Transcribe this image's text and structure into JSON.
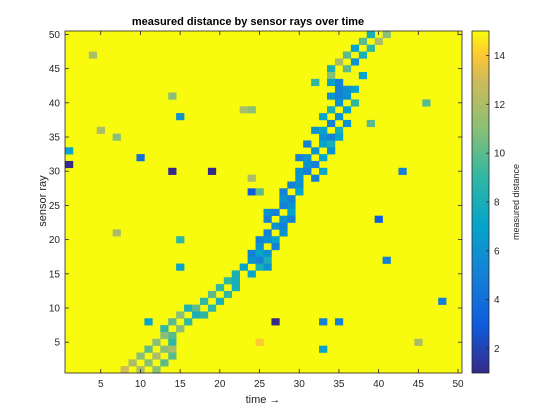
{
  "chart_data": {
    "type": "heatmap",
    "title": "measured distance by sensor rays over time",
    "xlabel": "time →",
    "ylabel": "sensor ray",
    "colorbar_label": "measured distance",
    "x_range": [
      1,
      50
    ],
    "y_range": [
      1,
      50
    ],
    "color_range": [
      1,
      15
    ],
    "colormap": "parula",
    "background_value": 15,
    "x_ticks": [
      5,
      10,
      15,
      20,
      25,
      30,
      35,
      40,
      45,
      50
    ],
    "y_ticks": [
      5,
      10,
      15,
      20,
      25,
      30,
      35,
      40,
      45,
      50
    ],
    "colorbar_ticks": [
      2,
      4,
      6,
      8,
      10,
      12,
      14
    ],
    "grid": false,
    "cells": [
      [
        39,
        50,
        8
      ],
      [
        41,
        50,
        11
      ],
      [
        38,
        49,
        10
      ],
      [
        40,
        49,
        12
      ],
      [
        37,
        48,
        7
      ],
      [
        39,
        48,
        9
      ],
      [
        36,
        47,
        10
      ],
      [
        38,
        47,
        8
      ],
      [
        35,
        46,
        12
      ],
      [
        37,
        46,
        6
      ],
      [
        34,
        45,
        8
      ],
      [
        36,
        45,
        10
      ],
      [
        38,
        44,
        7
      ],
      [
        34,
        44,
        11
      ],
      [
        32,
        43,
        9
      ],
      [
        34,
        43,
        7
      ],
      [
        35,
        43,
        5
      ],
      [
        36,
        42,
        6
      ],
      [
        37,
        42,
        7
      ],
      [
        35,
        42,
        5
      ],
      [
        34,
        41,
        6
      ],
      [
        35,
        41,
        5
      ],
      [
        36,
        41,
        6
      ],
      [
        35,
        40,
        6
      ],
      [
        37,
        40,
        9
      ],
      [
        34,
        39,
        8
      ],
      [
        36,
        39,
        7
      ],
      [
        33,
        38,
        7
      ],
      [
        35,
        38,
        6
      ],
      [
        34,
        37,
        5
      ],
      [
        36,
        37,
        6
      ],
      [
        32,
        36,
        6
      ],
      [
        33,
        36,
        7
      ],
      [
        35,
        36,
        8
      ],
      [
        33,
        35,
        6
      ],
      [
        34,
        35,
        5
      ],
      [
        35,
        35,
        7
      ],
      [
        31,
        34,
        5
      ],
      [
        33,
        34,
        7
      ],
      [
        34,
        34,
        8
      ],
      [
        32,
        33,
        6
      ],
      [
        34,
        33,
        6
      ],
      [
        30,
        32,
        5
      ],
      [
        31,
        32,
        6
      ],
      [
        33,
        32,
        7
      ],
      [
        31,
        31,
        6
      ],
      [
        32,
        31,
        5
      ],
      [
        30,
        30,
        6
      ],
      [
        31,
        30,
        5
      ],
      [
        33,
        30,
        7
      ],
      [
        30,
        29,
        6
      ],
      [
        32,
        29,
        5
      ],
      [
        29,
        28,
        5
      ],
      [
        30,
        28,
        6
      ],
      [
        28,
        27,
        5
      ],
      [
        30,
        27,
        7
      ],
      [
        28,
        26,
        6
      ],
      [
        29,
        26,
        5
      ],
      [
        28,
        25,
        5
      ],
      [
        29,
        25,
        6
      ],
      [
        26,
        24,
        6
      ],
      [
        27,
        24,
        5
      ],
      [
        29,
        24,
        7
      ],
      [
        26,
        23,
        5
      ],
      [
        28,
        23,
        6
      ],
      [
        29,
        23,
        5
      ],
      [
        27,
        22,
        6
      ],
      [
        28,
        22,
        5
      ],
      [
        26,
        21,
        5
      ],
      [
        28,
        21,
        6
      ],
      [
        25,
        20,
        5
      ],
      [
        26,
        20,
        6
      ],
      [
        27,
        20,
        7
      ],
      [
        25,
        19,
        6
      ],
      [
        27,
        19,
        5
      ],
      [
        24,
        18,
        5
      ],
      [
        25,
        18,
        7
      ],
      [
        26,
        18,
        6
      ],
      [
        24,
        17,
        6
      ],
      [
        25,
        17,
        5
      ],
      [
        26,
        17,
        8
      ],
      [
        23,
        16,
        7
      ],
      [
        25,
        16,
        8
      ],
      [
        26,
        16,
        6
      ],
      [
        22,
        15,
        8
      ],
      [
        24,
        15,
        7
      ],
      [
        21,
        14,
        9
      ],
      [
        22,
        14,
        8
      ],
      [
        20,
        13,
        9
      ],
      [
        22,
        13,
        8
      ],
      [
        19,
        12,
        10
      ],
      [
        21,
        12,
        9
      ],
      [
        18,
        11,
        9
      ],
      [
        20,
        11,
        8
      ],
      [
        16,
        10,
        8
      ],
      [
        17,
        10,
        10
      ],
      [
        19,
        10,
        9
      ],
      [
        15,
        9,
        11
      ],
      [
        17,
        9,
        8
      ],
      [
        18,
        9,
        9
      ],
      [
        14,
        8,
        10
      ],
      [
        16,
        8,
        9
      ],
      [
        13,
        7,
        9
      ],
      [
        15,
        7,
        11
      ],
      [
        13,
        6,
        11
      ],
      [
        14,
        6,
        10
      ],
      [
        12,
        5,
        11
      ],
      [
        14,
        5,
        9
      ],
      [
        11,
        4,
        10
      ],
      [
        13,
        4,
        11
      ],
      [
        14,
        4,
        12
      ],
      [
        10,
        3,
        11
      ],
      [
        12,
        3,
        12
      ],
      [
        14,
        3,
        10
      ],
      [
        9,
        2,
        12
      ],
      [
        11,
        2,
        11
      ],
      [
        13,
        2,
        10
      ],
      [
        8,
        1,
        13
      ],
      [
        10,
        1,
        12
      ],
      [
        12,
        1,
        11
      ],
      [
        1,
        33,
        7
      ],
      [
        1,
        31,
        1
      ],
      [
        4,
        47,
        12
      ],
      [
        5,
        36,
        12
      ],
      [
        7,
        35,
        11
      ],
      [
        7,
        21,
        12
      ],
      [
        10,
        32,
        4
      ],
      [
        11,
        8,
        7
      ],
      [
        14,
        41,
        11
      ],
      [
        14,
        30,
        1
      ],
      [
        15,
        38,
        6
      ],
      [
        15,
        20,
        9
      ],
      [
        15,
        16,
        7
      ],
      [
        19,
        30,
        1
      ],
      [
        23,
        39,
        12
      ],
      [
        24,
        39,
        11
      ],
      [
        24,
        27,
        3
      ],
      [
        25,
        27,
        10
      ],
      [
        24,
        29,
        12
      ],
      [
        25,
        5,
        14
      ],
      [
        27,
        8,
        1
      ],
      [
        33,
        4,
        7
      ],
      [
        33,
        8,
        5
      ],
      [
        35,
        8,
        5
      ],
      [
        39,
        37,
        10
      ],
      [
        40,
        23,
        3
      ],
      [
        41,
        17,
        5
      ],
      [
        43,
        30,
        5
      ],
      [
        45,
        5,
        12
      ],
      [
        46,
        40,
        10
      ],
      [
        48,
        11,
        5
      ]
    ]
  }
}
